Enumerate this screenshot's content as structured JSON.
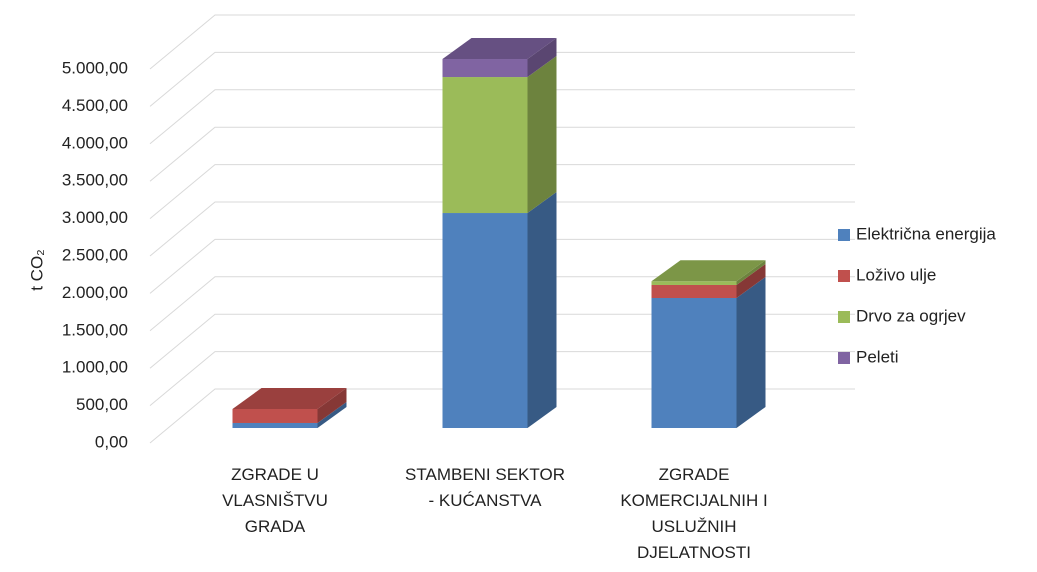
{
  "chart_data": {
    "type": "bar3d_stacked",
    "y_label": "t CO₂",
    "categories": [
      "ZGRADE U\nVLASNIŠTVU\nGRADA",
      "STAMBENI SEKTOR\n- KUĆANSTVA",
      "ZGRADE\nKOMERCIJALNIH  I\nUSLUŽNIH\nDJELATNOSTI"
    ],
    "series": [
      {
        "name": "Električna energija",
        "color": "#4f81bd",
        "values": [
          67,
          2874,
          1738
        ]
      },
      {
        "name": "Loživo ulje",
        "color": "#c0504d",
        "values": [
          187,
          0,
          174
        ]
      },
      {
        "name": "Drvo za ogrjev",
        "color": "#9bbb59",
        "values": [
          0,
          1818,
          50
        ]
      },
      {
        "name": "Peleti",
        "color": "#8064a2",
        "values": [
          0,
          241,
          0
        ]
      }
    ],
    "ylim": [
      0,
      5000
    ],
    "yticks": [
      {
        "value": 0,
        "label": "0,00"
      },
      {
        "value": 500,
        "label": "500,00"
      },
      {
        "value": 1000,
        "label": "1.000,00"
      },
      {
        "value": 1500,
        "label": "1.500,00"
      },
      {
        "value": 2000,
        "label": "2.000,00"
      },
      {
        "value": 2500,
        "label": "2.500,00"
      },
      {
        "value": 3000,
        "label": "3.000,00"
      },
      {
        "value": 3500,
        "label": "3.500,00"
      },
      {
        "value": 4000,
        "label": "4.000,00"
      },
      {
        "value": 4500,
        "label": "4.500,00"
      },
      {
        "value": 5000,
        "label": "5.000,00"
      }
    ],
    "grid": true,
    "legend": "right"
  }
}
